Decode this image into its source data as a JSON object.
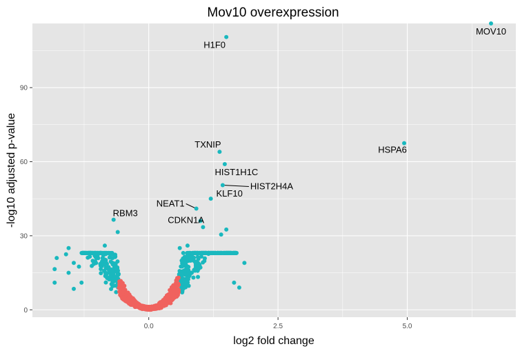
{
  "chart_data": {
    "type": "scatter",
    "title": "Mov10 overexpression",
    "xlabel": "log2 fold change",
    "ylabel": "-log10 adjusted p-value",
    "xlim": [
      -2.25,
      7.1
    ],
    "ylim": [
      -3,
      116
    ],
    "x_ticks": [
      0.0,
      2.5,
      5.0
    ],
    "x_tick_labels": [
      "0.0",
      "2.5",
      "5.0"
    ],
    "y_ticks": [
      0,
      30,
      60,
      90
    ],
    "y_tick_labels": [
      "0",
      "30",
      "60",
      "90"
    ],
    "colors": {
      "significant": "#1ab8be",
      "not_significant": "#f0625e",
      "panel": "#e5e5e5",
      "grid": "#ffffff"
    },
    "legend": "none",
    "labeled_points": [
      {
        "label": "MOV10",
        "x": 6.62,
        "y": 116.0
      },
      {
        "label": "H1F0",
        "x": 1.5,
        "y": 110.5
      },
      {
        "label": "HSPA6",
        "x": 4.94,
        "y": 67.5
      },
      {
        "label": "TXNIP",
        "x": 1.37,
        "y": 64.0
      },
      {
        "label": "HIST1H1C",
        "x": 1.47,
        "y": 59.0
      },
      {
        "label": "HIST2H4A",
        "x": 1.43,
        "y": 50.5
      },
      {
        "label": "KLF10",
        "x": 1.2,
        "y": 45.0
      },
      {
        "label": "NEAT1",
        "x": 0.92,
        "y": 41.0
      },
      {
        "label": "RBM3",
        "x": -0.68,
        "y": 36.5
      },
      {
        "label": "CDKN1A",
        "x": 1.0,
        "y": 36.0
      }
    ],
    "extra_significant_points": [
      {
        "x": 1.5,
        "y": 32.5
      },
      {
        "x": 1.05,
        "y": 33.5
      },
      {
        "x": 1.4,
        "y": 30.5
      },
      {
        "x": -0.6,
        "y": 31.5
      },
      {
        "x": 1.85,
        "y": 19.0
      },
      {
        "x": 1.65,
        "y": 11.0
      },
      {
        "x": -1.78,
        "y": 21.0
      },
      {
        "x": -1.82,
        "y": 16.5
      },
      {
        "x": -1.82,
        "y": 11.0
      },
      {
        "x": -1.55,
        "y": 25.0
      },
      {
        "x": -1.6,
        "y": 22.5
      },
      {
        "x": -1.45,
        "y": 19.0
      },
      {
        "x": -1.35,
        "y": 17.5
      },
      {
        "x": -1.55,
        "y": 15.0
      },
      {
        "x": -1.3,
        "y": 11.0
      },
      {
        "x": -1.45,
        "y": 8.5
      },
      {
        "x": -0.85,
        "y": 26.0
      },
      {
        "x": 0.75,
        "y": 26.0
      },
      {
        "x": 0.6,
        "y": 25.0
      },
      {
        "x": 1.75,
        "y": 9.0
      }
    ],
    "bulk_distribution": {
      "n_points": 1400,
      "significance_threshold_abs_log2fc": 0.58,
      "x_spread_negative": [
        -1.3,
        0.0
      ],
      "x_spread_positive": [
        0.0,
        1.7
      ],
      "y_range": [
        0,
        23
      ]
    }
  }
}
